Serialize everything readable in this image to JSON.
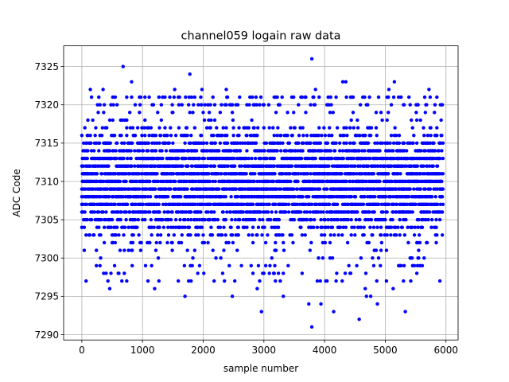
{
  "chart_data": {
    "type": "scatter",
    "title": "channel059 logain raw data",
    "xlabel": "sample number",
    "ylabel": "ADC Code",
    "xlim": [
      -300,
      6200
    ],
    "ylim": [
      7289.3,
      7327.7
    ],
    "x_ticks": [
      0,
      1000,
      2000,
      3000,
      4000,
      5000,
      6000
    ],
    "y_ticks": [
      7290,
      7295,
      7300,
      7305,
      7310,
      7315,
      7320,
      7325
    ],
    "x_tick_labels": [
      "0",
      "1000",
      "2000",
      "3000",
      "4000",
      "5000",
      "6000"
    ],
    "y_tick_labels": [
      "7290",
      "7295",
      "7300",
      "7305",
      "7310",
      "7315",
      "7320",
      "7325"
    ],
    "grid": true,
    "marker_color": "#0000ff",
    "x_range": [
      0,
      5950
    ],
    "x_step": 10,
    "y_dense_range": [
      7301,
      7319
    ],
    "notable_points": [
      {
        "x": 680,
        "y": 7325
      },
      {
        "x": 1780,
        "y": 7324
      },
      {
        "x": 3790,
        "y": 7326
      },
      {
        "x": 3790,
        "y": 7291
      },
      {
        "x": 2960,
        "y": 7293
      },
      {
        "x": 4150,
        "y": 7293
      },
      {
        "x": 5330,
        "y": 7293
      },
      {
        "x": 4570,
        "y": 7292
      },
      {
        "x": 3740,
        "y": 7294
      },
      {
        "x": 3940,
        "y": 7294
      },
      {
        "x": 4870,
        "y": 7294
      },
      {
        "x": 1700,
        "y": 7295
      },
      {
        "x": 2480,
        "y": 7295
      },
      {
        "x": 3320,
        "y": 7295
      },
      {
        "x": 4760,
        "y": 7295
      },
      {
        "x": 4690,
        "y": 7295
      },
      {
        "x": 460,
        "y": 7296
      },
      {
        "x": 1200,
        "y": 7296
      },
      {
        "x": 2890,
        "y": 7296
      },
      {
        "x": 5130,
        "y": 7296
      },
      {
        "x": 4670,
        "y": 7296
      },
      {
        "x": 4300,
        "y": 7323
      },
      {
        "x": 4350,
        "y": 7323
      },
      {
        "x": 5150,
        "y": 7323
      },
      {
        "x": 820,
        "y": 7323
      },
      {
        "x": 5060,
        "y": 7322
      },
      {
        "x": 5720,
        "y": 7322
      },
      {
        "x": 1530,
        "y": 7322
      },
      {
        "x": 2380,
        "y": 7322
      },
      {
        "x": 140,
        "y": 7322
      },
      {
        "x": 3850,
        "y": 7322
      },
      {
        "x": 350,
        "y": 7322
      },
      {
        "x": 1980,
        "y": 7322
      }
    ]
  }
}
